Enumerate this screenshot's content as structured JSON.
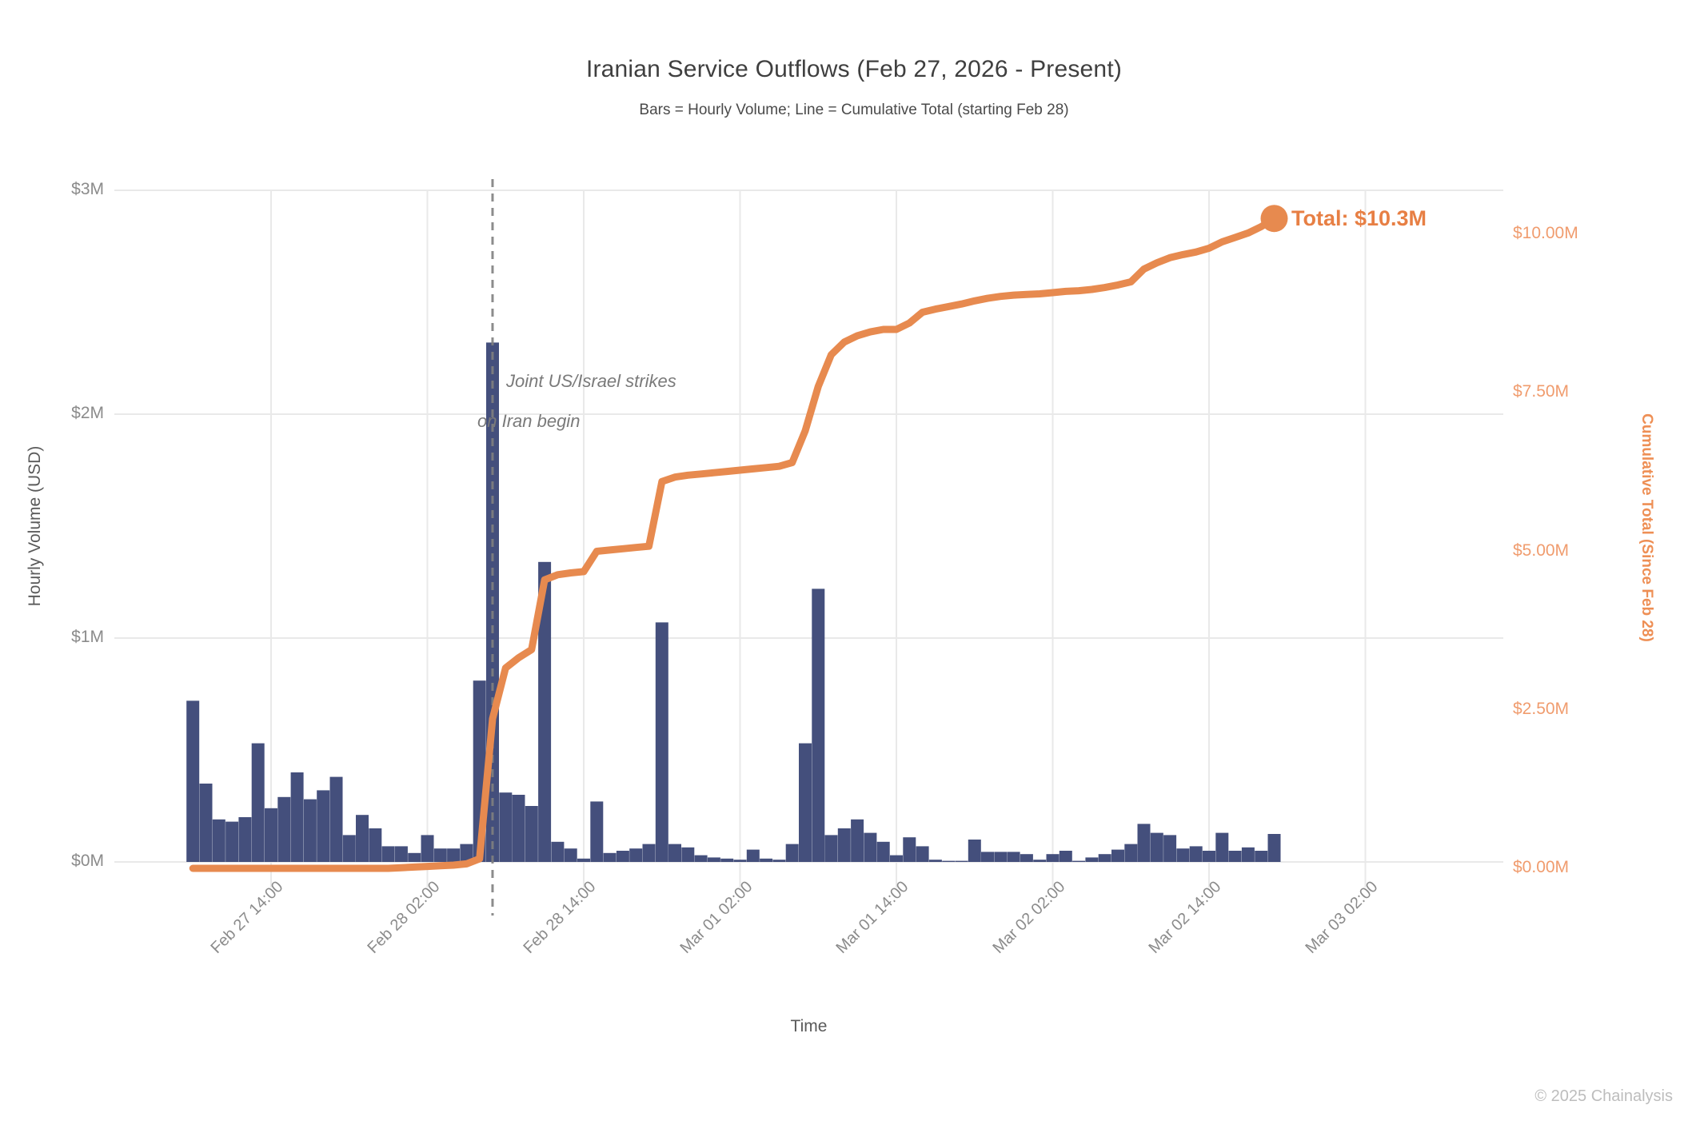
{
  "header": {
    "title": "Iranian Service Outflows (Feb 27, 2026 - Present)",
    "subtitle": "Bars = Hourly Volume; Line = Cumulative Total (starting Feb 28)"
  },
  "annotation": {
    "line1": "Joint US/Israel strikes",
    "line2": "on Iran begin",
    "hour_index": 23
  },
  "total_callout": {
    "label": "Total: $10.3M",
    "value_musd": 10.3
  },
  "footer": {
    "copyright": "© 2025 Chainalysis"
  },
  "colors": {
    "bar": "#444f7c",
    "line": "#e78a4f",
    "dot": "#e78a4f",
    "grid": "#e9e9e9",
    "dashed_line": "#808080",
    "left_tick": "#8b8b8b",
    "right_tick": "#f09c6e",
    "right_axis_title": "#ee8f55",
    "total_label": "#e77f44",
    "title_text": "#3f3f3f",
    "footer_text": "#bdbdbd"
  },
  "chart_data": {
    "type": "bar",
    "overlay": "line",
    "x_unit": "1 hour per bar",
    "x_start_label": "Feb 27 08:00",
    "x_end_label": "Mar 02 19:00",
    "xlabel": "Time",
    "x_ticks": [
      {
        "label": "Feb 27 14:00",
        "hour_index": 6
      },
      {
        "label": "Feb 28 02:00",
        "hour_index": 18
      },
      {
        "label": "Feb 28 14:00",
        "hour_index": 30
      },
      {
        "label": "Mar 01 02:00",
        "hour_index": 42
      },
      {
        "label": "Mar 01 14:00",
        "hour_index": 54
      },
      {
        "label": "Mar 02 02:00",
        "hour_index": 66
      },
      {
        "label": "Mar 02 14:00",
        "hour_index": 78
      },
      {
        "label": "Mar 03 02:00",
        "hour_index": 90
      }
    ],
    "left_axis": {
      "title": "Hourly Volume (USD)",
      "range_musd": [
        0,
        3
      ],
      "grid": true,
      "ticks": [
        {
          "label": "$3M",
          "value": 3
        },
        {
          "label": "$2M",
          "value": 2
        },
        {
          "label": "$1M",
          "value": 1
        },
        {
          "label": "$0M",
          "value": 0
        }
      ]
    },
    "right_axis": {
      "title": "Cumulative Total (Since Feb 28)",
      "range_musd": [
        0,
        10.5
      ],
      "grid": false,
      "ticks": [
        {
          "label": "$10.00M",
          "value": 10
        },
        {
          "label": "$7.50M",
          "value": 7.5
        },
        {
          "label": "$5.00M",
          "value": 5
        },
        {
          "label": "$2.50M",
          "value": 2.5
        },
        {
          "label": "$0.00M",
          "value": 0
        }
      ]
    },
    "series": [
      {
        "name": "Hourly Volume",
        "type": "bar",
        "axis": "left",
        "values_musd": [
          0.72,
          0.35,
          0.19,
          0.18,
          0.2,
          0.53,
          0.24,
          0.29,
          0.4,
          0.28,
          0.32,
          0.38,
          0.12,
          0.21,
          0.15,
          0.07,
          0.07,
          0.04,
          0.12,
          0.06,
          0.06,
          0.08,
          0.81,
          2.32,
          0.31,
          0.3,
          0.25,
          1.34,
          0.09,
          0.06,
          0.015,
          0.27,
          0.04,
          0.05,
          0.06,
          0.08,
          1.07,
          0.08,
          0.065,
          0.03,
          0.02,
          0.015,
          0.01,
          0.055,
          0.015,
          0.01,
          0.08,
          0.53,
          1.22,
          0.12,
          0.15,
          0.19,
          0.13,
          0.09,
          0.03,
          0.11,
          0.07,
          0.01,
          0.005,
          0.005,
          0.1,
          0.045,
          0.045,
          0.045,
          0.035,
          0.01,
          0.035,
          0.05,
          0.005,
          0.02,
          0.035,
          0.055,
          0.08,
          0.17,
          0.13,
          0.12,
          0.06,
          0.07,
          0.05,
          0.13,
          0.05,
          0.065,
          0.05,
          0.125
        ]
      },
      {
        "name": "Cumulative Total",
        "type": "line",
        "axis": "right",
        "values_musd": [
          0,
          0,
          0,
          0,
          0,
          0,
          0,
          0,
          0,
          0,
          0,
          0,
          0,
          0,
          0,
          0,
          0.01,
          0.02,
          0.03,
          0.04,
          0.05,
          0.07,
          0.15,
          2.36,
          3.16,
          3.32,
          3.45,
          4.55,
          4.63,
          4.66,
          4.68,
          5.0,
          5.02,
          5.04,
          5.06,
          5.08,
          6.1,
          6.17,
          6.2,
          6.22,
          6.24,
          6.26,
          6.28,
          6.3,
          6.32,
          6.34,
          6.4,
          6.9,
          7.6,
          8.1,
          8.3,
          8.4,
          8.46,
          8.5,
          8.5,
          8.6,
          8.77,
          8.82,
          8.86,
          8.9,
          8.95,
          8.99,
          9.02,
          9.04,
          9.05,
          9.06,
          9.08,
          9.1,
          9.11,
          9.13,
          9.16,
          9.2,
          9.25,
          9.45,
          9.55,
          9.63,
          9.68,
          9.72,
          9.78,
          9.88,
          9.95,
          10.02,
          10.12,
          10.25
        ]
      }
    ]
  }
}
